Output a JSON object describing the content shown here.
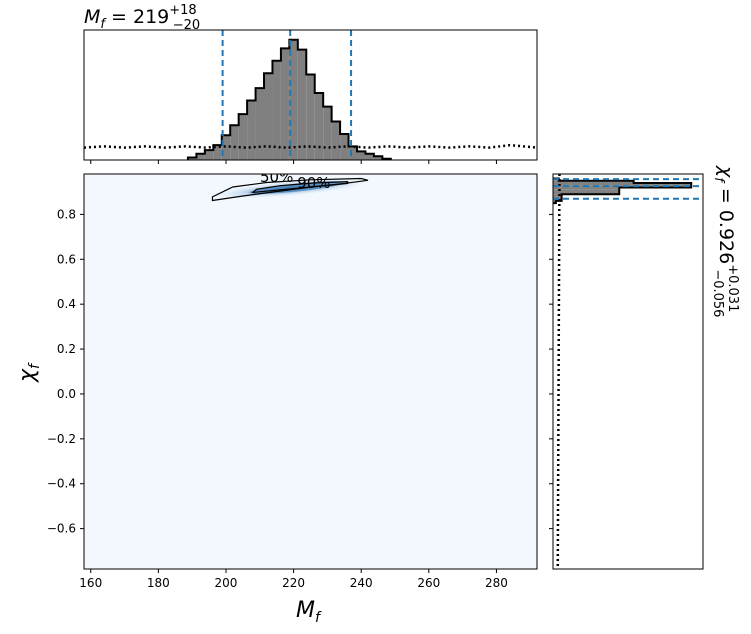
{
  "chart_data": [
    {
      "type": "histogram",
      "panel": "top-marginal",
      "parameter": "M_f",
      "title": {
        "symbol": "M",
        "sub": "f",
        "eq": " = ",
        "value": "219",
        "sup": "+18",
        "lower": "−20"
      },
      "x_range": [
        158,
        292
      ],
      "bins": [
        [
          190,
          0.02
        ],
        [
          192.5,
          0.05
        ],
        [
          195,
          0.08
        ],
        [
          197.5,
          0.12
        ],
        [
          200,
          0.2
        ],
        [
          202.5,
          0.28
        ],
        [
          205,
          0.37
        ],
        [
          207.5,
          0.48
        ],
        [
          210,
          0.58
        ],
        [
          212.5,
          0.7
        ],
        [
          215,
          0.8
        ],
        [
          217.5,
          0.9
        ],
        [
          220,
          0.97
        ],
        [
          222.5,
          0.89
        ],
        [
          225,
          0.69
        ],
        [
          227.5,
          0.54
        ],
        [
          230,
          0.43
        ],
        [
          232.5,
          0.31
        ],
        [
          235,
          0.21
        ],
        [
          237.5,
          0.11
        ],
        [
          240,
          0.07
        ],
        [
          242.5,
          0.05
        ],
        [
          245,
          0.03
        ],
        [
          247.5,
          0.01
        ]
      ],
      "prior_line": [
        [
          158,
          0.1
        ],
        [
          164,
          0.11
        ],
        [
          170,
          0.1
        ],
        [
          176,
          0.11
        ],
        [
          182,
          0.1
        ],
        [
          188,
          0.11
        ],
        [
          194,
          0.1
        ],
        [
          200,
          0.11
        ],
        [
          206,
          0.1
        ],
        [
          212,
          0.11
        ],
        [
          218,
          0.1
        ],
        [
          224,
          0.11
        ],
        [
          230,
          0.1
        ],
        [
          236,
          0.11
        ],
        [
          242,
          0.1
        ],
        [
          248,
          0.11
        ],
        [
          254,
          0.1
        ],
        [
          260,
          0.11
        ],
        [
          266,
          0.1
        ],
        [
          272,
          0.11
        ],
        [
          278,
          0.1
        ],
        [
          284,
          0.12
        ],
        [
          288,
          0.11
        ],
        [
          292,
          0.1
        ]
      ],
      "quantile_lines": [
        199,
        219,
        237
      ]
    },
    {
      "type": "heatmap",
      "panel": "joint-posterior",
      "xlabel": {
        "symbol": "M",
        "sub": "f"
      },
      "ylabel": {
        "symbol": "χ",
        "sub": "f"
      },
      "xlim": [
        158,
        292
      ],
      "ylim": [
        -0.78,
        0.98
      ],
      "xticks": [
        160,
        180,
        200,
        220,
        240,
        260,
        280
      ],
      "yticks": [
        0.8,
        0.6,
        0.4,
        0.2,
        0.0,
        -0.2,
        -0.4,
        -0.6
      ],
      "contour_90": [
        [
          196,
          0.862
        ],
        [
          205,
          0.882
        ],
        [
          215,
          0.902
        ],
        [
          225,
          0.922
        ],
        [
          235,
          0.938
        ],
        [
          242,
          0.952
        ],
        [
          240,
          0.96
        ],
        [
          225,
          0.954
        ],
        [
          212,
          0.942
        ],
        [
          202,
          0.922
        ],
        [
          196,
          0.878
        ]
      ],
      "contour_50": [
        [
          208,
          0.898
        ],
        [
          218,
          0.912
        ],
        [
          228,
          0.926
        ],
        [
          236,
          0.938
        ],
        [
          236,
          0.946
        ],
        [
          226,
          0.94
        ],
        [
          216,
          0.928
        ],
        [
          209,
          0.912
        ]
      ],
      "contour_labels": [
        {
          "text": "50%",
          "x": 215,
          "y": 0.945
        },
        {
          "text": "90%",
          "x": 226,
          "y": 0.918
        }
      ]
    },
    {
      "type": "histogram",
      "panel": "right-marginal",
      "parameter": "χ_f",
      "title": {
        "symbol": "χ",
        "sub": "f",
        "eq": " = ",
        "value": "0.926",
        "sup": "+0.031",
        "lower": "−0.056"
      },
      "y_range": [
        -0.78,
        0.98
      ],
      "bins": [
        [
          0.955,
          0.04
        ],
        [
          0.945,
          0.56
        ],
        [
          0.935,
          0.96
        ],
        [
          0.925,
          0.96
        ],
        [
          0.915,
          0.46
        ],
        [
          0.905,
          0.46
        ],
        [
          0.895,
          0.46
        ],
        [
          0.885,
          0.06
        ],
        [
          0.875,
          0.06
        ],
        [
          0.865,
          0.06
        ],
        [
          0.855,
          0.02
        ]
      ],
      "prior_line": [
        [
          0.98,
          0.045
        ],
        [
          0.7,
          0.043
        ],
        [
          0.4,
          0.041
        ],
        [
          0.1,
          0.039
        ],
        [
          -0.2,
          0.037
        ],
        [
          -0.5,
          0.035
        ],
        [
          -0.78,
          0.033
        ]
      ],
      "quantile_lines": [
        0.87,
        0.926,
        0.957
      ]
    }
  ]
}
